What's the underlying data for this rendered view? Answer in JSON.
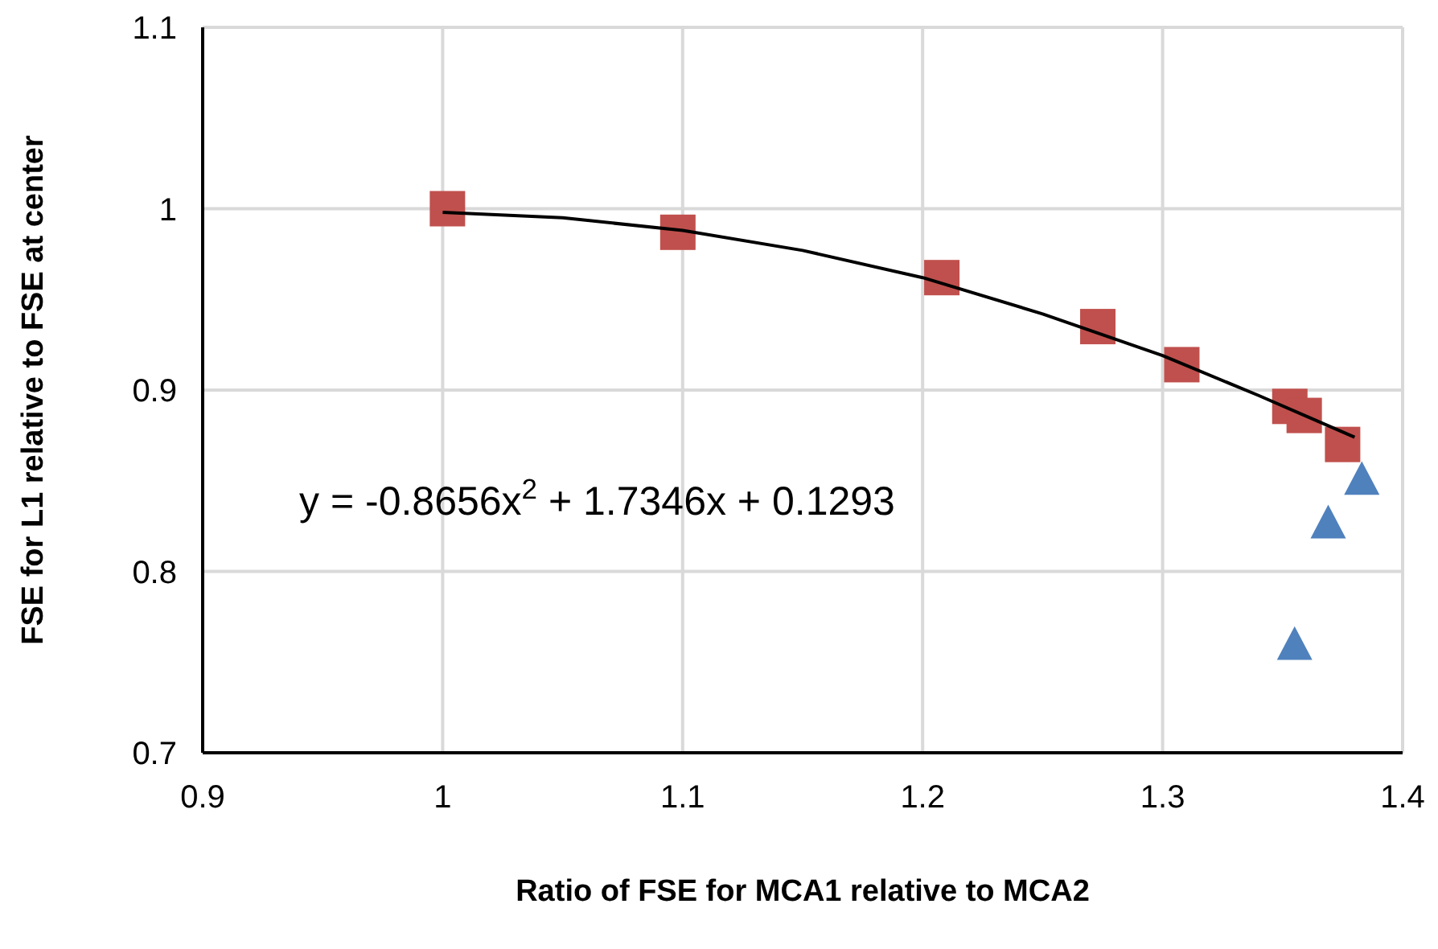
{
  "chart_data": {
    "type": "scatter",
    "xlabel": "Ratio of FSE for MCA1 relative to MCA2",
    "ylabel": "FSE for L1 relative to FSE at center",
    "xlim": [
      0.9,
      1.4
    ],
    "xticks": [
      0.9,
      1,
      1.1,
      1.2,
      1.3,
      1.4
    ],
    "ylim": [
      0.7,
      1.1
    ],
    "yticks": [
      0.7,
      0.8,
      0.9,
      1,
      1.1
    ],
    "grid": true,
    "annotations": [
      "y = -0.8656x$^{2}$ + 1.7346x + 0.1293"
    ],
    "series": [
      {
        "type": "scatter",
        "marker": "square",
        "color": "#c0504d",
        "x": [
          1.002,
          1.098,
          1.208,
          1.273,
          1.308,
          1.353,
          1.359,
          1.375
        ],
        "values": [
          1.0,
          0.987,
          0.962,
          0.935,
          0.914,
          0.891,
          0.886,
          0.87
        ]
      },
      {
        "type": "scatter",
        "marker": "triangle",
        "color": "#4f81bd",
        "x": [
          1.355,
          1.369,
          1.383
        ],
        "values": [
          0.76,
          0.827,
          0.851
        ]
      },
      {
        "type": "line",
        "color": "#000000",
        "line_style": "solid",
        "x": [
          1.0,
          1.05,
          1.1,
          1.15,
          1.2,
          1.25,
          1.3,
          1.34,
          1.38
        ],
        "values": [
          0.998,
          0.995,
          0.988,
          0.977,
          0.962,
          0.942,
          0.919,
          0.897,
          0.874
        ]
      }
    ]
  }
}
